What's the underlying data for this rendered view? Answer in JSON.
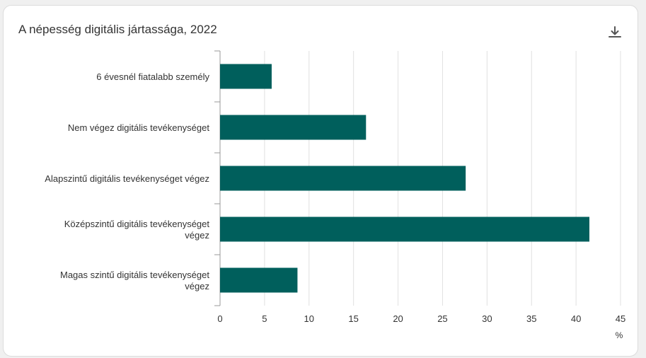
{
  "header": {
    "title": "A népesség digitális jártassága, 2022",
    "download_icon": "download-icon"
  },
  "chart_data": {
    "type": "bar",
    "orientation": "horizontal",
    "title": "A népesség digitális jártassága, 2022",
    "categories": [
      "6 évesnél fiatalabb személy",
      "Nem végez digitális tevékenységet",
      "Alapszintű digitális tevékenységet végez",
      "Középszintű digitális tevékenységet végez",
      "Magas szintű digitális tevékenységet végez"
    ],
    "values": [
      5.8,
      16.4,
      27.6,
      41.5,
      8.7
    ],
    "xlabel": "%",
    "xlim": [
      0,
      45
    ],
    "xticks": [
      0,
      5,
      10,
      15,
      20,
      25,
      30,
      35,
      40,
      45
    ],
    "grid": true,
    "legend": "none",
    "bar_color": "#005f5c",
    "grid_color": "#e0e0e0",
    "axis_color": "#999999",
    "label_color": "#333333"
  }
}
